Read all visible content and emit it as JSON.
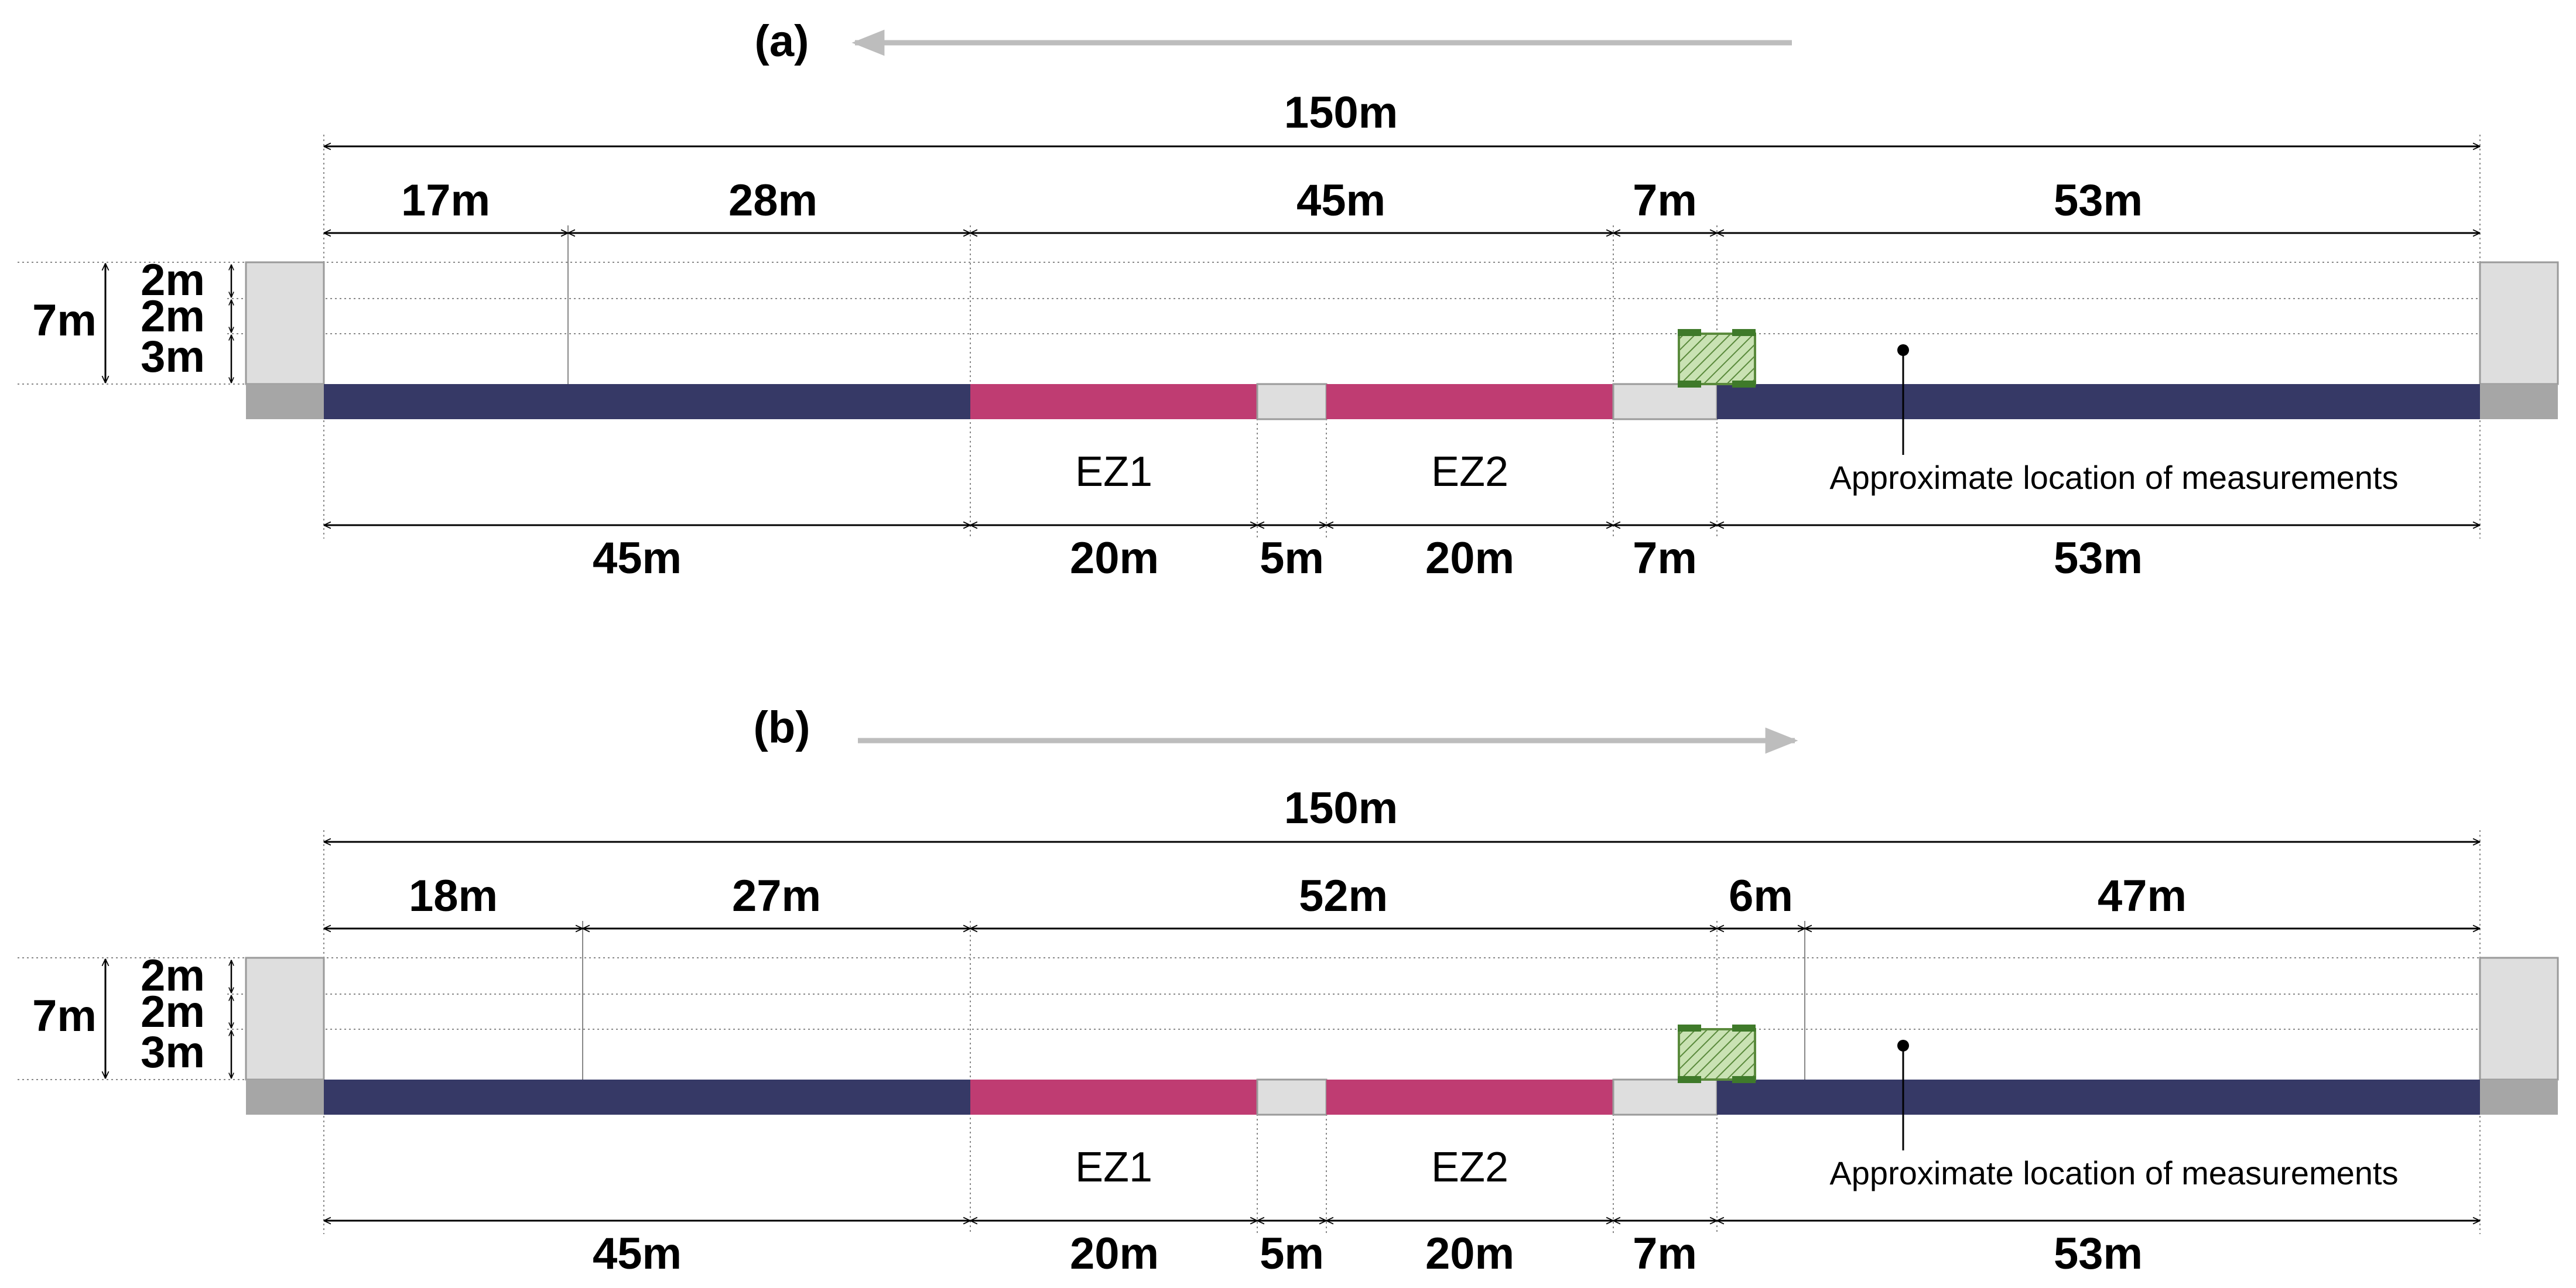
{
  "panels": [
    {
      "panel_label": "(a)",
      "direction": "left",
      "total_label": "150m",
      "upper_dims": [
        "17m",
        "28m",
        "45m",
        "7m",
        "53m"
      ],
      "height_total_label": "7m",
      "height_dims": [
        "2m",
        "2m",
        "3m"
      ],
      "zones": [
        "EZ1",
        "EZ2"
      ],
      "lower_dims": [
        "45m",
        "20m",
        "5m",
        "20m",
        "7m",
        "53m"
      ],
      "note": "Approximate location of measurements"
    },
    {
      "panel_label": "(b)",
      "direction": "right",
      "total_label": "150m",
      "upper_dims": [
        "18m",
        "27m",
        "52m",
        "6m",
        "47m"
      ],
      "height_total_label": "7m",
      "height_dims": [
        "2m",
        "2m",
        "3m"
      ],
      "zones": [
        "EZ1",
        "EZ2"
      ],
      "lower_dims": [
        "45m",
        "20m",
        "5m",
        "20m",
        "7m",
        "53m"
      ],
      "note": "Approximate location of measurements"
    }
  ],
  "colors": {
    "road": "#363966",
    "exposure_zone": "#bf3c72",
    "gap_segment": "#dedede",
    "building": "#dedede",
    "ground_end": "#a6a6a6",
    "vehicle": "#5a8a3c",
    "arrow": "#bdbdbd"
  }
}
